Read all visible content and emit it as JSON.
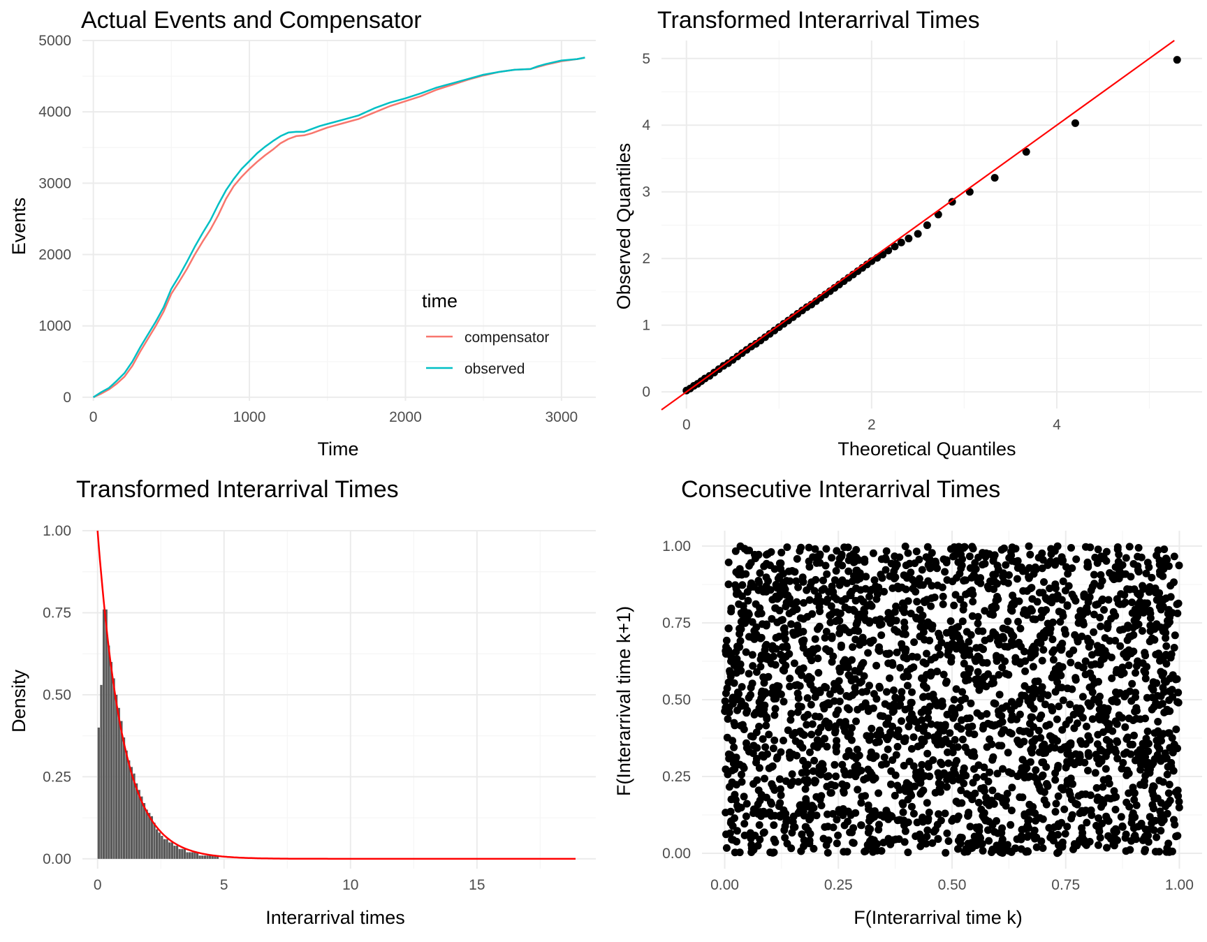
{
  "colors": {
    "compensator": "#F8766D",
    "observed": "#00BFC4",
    "reference_line": "#FF0000",
    "points": "#000000",
    "bars": "#595959",
    "grid_major": "#EBEBEB",
    "grid_minor": "#F5F5F5"
  },
  "chart_data": [
    {
      "type": "line",
      "title": "Actual Events and Compensator",
      "xlabel": "Time",
      "ylabel": "Events",
      "xlim": [
        -70,
        3220
      ],
      "ylim": [
        -50,
        5000
      ],
      "xticks": [
        0,
        1000,
        2000,
        3000
      ],
      "xtick_labels": [
        "0",
        "1000",
        "2000",
        "3000"
      ],
      "yticks": [
        0,
        1000,
        2000,
        3000,
        4000,
        5000
      ],
      "ytick_labels": [
        "0",
        "1000",
        "2000",
        "3000",
        "4000",
        "5000"
      ],
      "grid": true,
      "legend": {
        "title": "time",
        "position": "inside-bottom-right"
      },
      "series": [
        {
          "name": "compensator",
          "x": [
            0,
            50,
            100,
            150,
            200,
            250,
            300,
            350,
            400,
            450,
            500,
            550,
            600,
            650,
            700,
            750,
            800,
            850,
            900,
            950,
            1000,
            1050,
            1100,
            1150,
            1200,
            1250,
            1300,
            1350,
            1400,
            1450,
            1500,
            1550,
            1600,
            1700,
            1800,
            1900,
            2000,
            2100,
            2200,
            2300,
            2400,
            2500,
            2600,
            2700,
            2800,
            2850,
            2900,
            3000,
            3100,
            3150
          ],
          "values": [
            0,
            50,
            110,
            190,
            290,
            440,
            640,
            820,
            1000,
            1200,
            1450,
            1620,
            1800,
            2000,
            2180,
            2350,
            2550,
            2780,
            2960,
            3090,
            3200,
            3300,
            3390,
            3470,
            3560,
            3620,
            3660,
            3670,
            3700,
            3740,
            3780,
            3810,
            3840,
            3900,
            3990,
            4080,
            4150,
            4220,
            4310,
            4380,
            4450,
            4510,
            4560,
            4590,
            4600,
            4630,
            4660,
            4710,
            4740,
            4760
          ]
        },
        {
          "name": "observed",
          "x": [
            0,
            50,
            100,
            150,
            200,
            250,
            300,
            350,
            400,
            450,
            500,
            550,
            600,
            650,
            700,
            750,
            800,
            850,
            900,
            950,
            1000,
            1050,
            1100,
            1150,
            1200,
            1250,
            1300,
            1350,
            1400,
            1450,
            1500,
            1550,
            1600,
            1700,
            1800,
            1900,
            2000,
            2100,
            2200,
            2300,
            2400,
            2500,
            2600,
            2700,
            2800,
            2850,
            2900,
            3000,
            3100,
            3150
          ],
          "values": [
            0,
            70,
            130,
            230,
            340,
            500,
            700,
            880,
            1060,
            1260,
            1520,
            1700,
            1900,
            2110,
            2300,
            2480,
            2700,
            2900,
            3060,
            3200,
            3310,
            3420,
            3510,
            3590,
            3660,
            3710,
            3720,
            3720,
            3760,
            3800,
            3830,
            3860,
            3890,
            3950,
            4050,
            4130,
            4190,
            4260,
            4340,
            4400,
            4460,
            4520,
            4560,
            4590,
            4600,
            4640,
            4670,
            4720,
            4740,
            4760
          ]
        }
      ]
    },
    {
      "type": "scatter",
      "title": "Transformed Interarrival Times",
      "xlabel": "Theoretical Quantiles",
      "ylabel": "Observed Quantiles",
      "xlim": [
        -0.27,
        5.57
      ],
      "ylim": [
        -0.25,
        5.27
      ],
      "xticks": [
        0,
        2,
        4
      ],
      "xtick_labels": [
        "0",
        "2",
        "4"
      ],
      "yticks": [
        0,
        1,
        2,
        3,
        4,
        5
      ],
      "ytick_labels": [
        "0",
        "1",
        "2",
        "3",
        "4",
        "5"
      ],
      "grid": true,
      "reference_line": {
        "slope": 1,
        "intercept": 0
      },
      "x": [
        0.0,
        0.04,
        0.08,
        0.12,
        0.16,
        0.2,
        0.25,
        0.3,
        0.35,
        0.4,
        0.45,
        0.5,
        0.55,
        0.6,
        0.65,
        0.7,
        0.75,
        0.8,
        0.85,
        0.9,
        0.95,
        1.0,
        1.05,
        1.1,
        1.15,
        1.2,
        1.25,
        1.3,
        1.35,
        1.4,
        1.45,
        1.5,
        1.55,
        1.6,
        1.65,
        1.7,
        1.75,
        1.8,
        1.85,
        1.9,
        1.95,
        2.0,
        2.06,
        2.12,
        2.18,
        2.25,
        2.32,
        2.4,
        2.5,
        2.6,
        2.72,
        2.87,
        3.06,
        3.33,
        3.67,
        4.2,
        5.3
      ],
      "values": [
        0.02,
        0.05,
        0.09,
        0.12,
        0.16,
        0.2,
        0.24,
        0.29,
        0.34,
        0.39,
        0.43,
        0.48,
        0.53,
        0.58,
        0.63,
        0.68,
        0.72,
        0.77,
        0.82,
        0.87,
        0.92,
        0.97,
        1.02,
        1.07,
        1.12,
        1.17,
        1.22,
        1.27,
        1.31,
        1.36,
        1.41,
        1.46,
        1.51,
        1.56,
        1.61,
        1.66,
        1.71,
        1.76,
        1.81,
        1.86,
        1.91,
        1.96,
        2.01,
        2.06,
        2.12,
        2.18,
        2.24,
        2.3,
        2.37,
        2.5,
        2.66,
        2.85,
        3.0,
        3.21,
        3.6,
        4.03,
        4.98
      ]
    },
    {
      "type": "bar",
      "title": "Transformed Interarrival Times",
      "xlabel": "Interarrival times",
      "ylabel": "Density",
      "xlim": [
        -0.6,
        19.7
      ],
      "ylim": [
        -0.03,
        1.0
      ],
      "xticks": [
        0,
        5,
        10,
        15
      ],
      "xtick_labels": [
        "0",
        "5",
        "10",
        "15"
      ],
      "yticks": [
        0.0,
        0.25,
        0.5,
        0.75,
        1.0
      ],
      "ytick_labels": [
        "0.00",
        "0.25",
        "0.50",
        "0.75",
        "1.00"
      ],
      "grid": true,
      "bin_width": 0.1,
      "x": [
        0.0,
        0.1,
        0.2,
        0.3,
        0.4,
        0.5,
        0.6,
        0.7,
        0.8,
        0.9,
        1.0,
        1.1,
        1.2,
        1.3,
        1.4,
        1.5,
        1.6,
        1.7,
        1.8,
        1.9,
        2.0,
        2.1,
        2.2,
        2.3,
        2.4,
        2.5,
        2.6,
        2.7,
        2.8,
        2.9,
        3.0,
        3.1,
        3.2,
        3.3,
        3.4,
        3.5,
        3.6,
        3.7,
        3.8,
        3.9,
        4.0,
        4.1,
        4.2,
        4.3,
        4.4,
        4.5,
        4.6,
        4.7,
        4.8,
        4.9
      ],
      "values": [
        0.4,
        0.53,
        0.76,
        0.76,
        0.65,
        0.6,
        0.55,
        0.5,
        0.46,
        0.42,
        0.37,
        0.33,
        0.3,
        0.28,
        0.26,
        0.23,
        0.21,
        0.19,
        0.17,
        0.15,
        0.14,
        0.13,
        0.11,
        0.09,
        0.08,
        0.07,
        0.06,
        0.06,
        0.05,
        0.05,
        0.04,
        0.04,
        0.03,
        0.03,
        0.03,
        0.02,
        0.02,
        0.02,
        0.02,
        0.02,
        0.01,
        0.01,
        0.01,
        0.01,
        0.01,
        0.01,
        0.01,
        0.01,
        0.0,
        0.0
      ],
      "density_curve": {
        "rate": 1.0,
        "x_range": [
          0,
          18.9
        ]
      }
    },
    {
      "type": "scatter",
      "title": "Consecutive Interarrival Times",
      "xlabel": "F(Interarrival time k)",
      "ylabel": "F(Interarrival time k+1)",
      "xlim": [
        -0.05,
        1.05
      ],
      "ylim": [
        -0.05,
        1.05
      ],
      "xticks": [
        0.0,
        0.25,
        0.5,
        0.75,
        1.0
      ],
      "xtick_labels": [
        "0.00",
        "0.25",
        "0.50",
        "0.75",
        "1.00"
      ],
      "yticks": [
        0.0,
        0.25,
        0.5,
        0.75,
        1.0
      ],
      "ytick_labels": [
        "0.00",
        "0.25",
        "0.50",
        "0.75",
        "1.00"
      ],
      "grid": true,
      "point_count": 4760,
      "distribution": "uniform over [0.0, 1.0] x [0.0, 1.0]"
    }
  ]
}
